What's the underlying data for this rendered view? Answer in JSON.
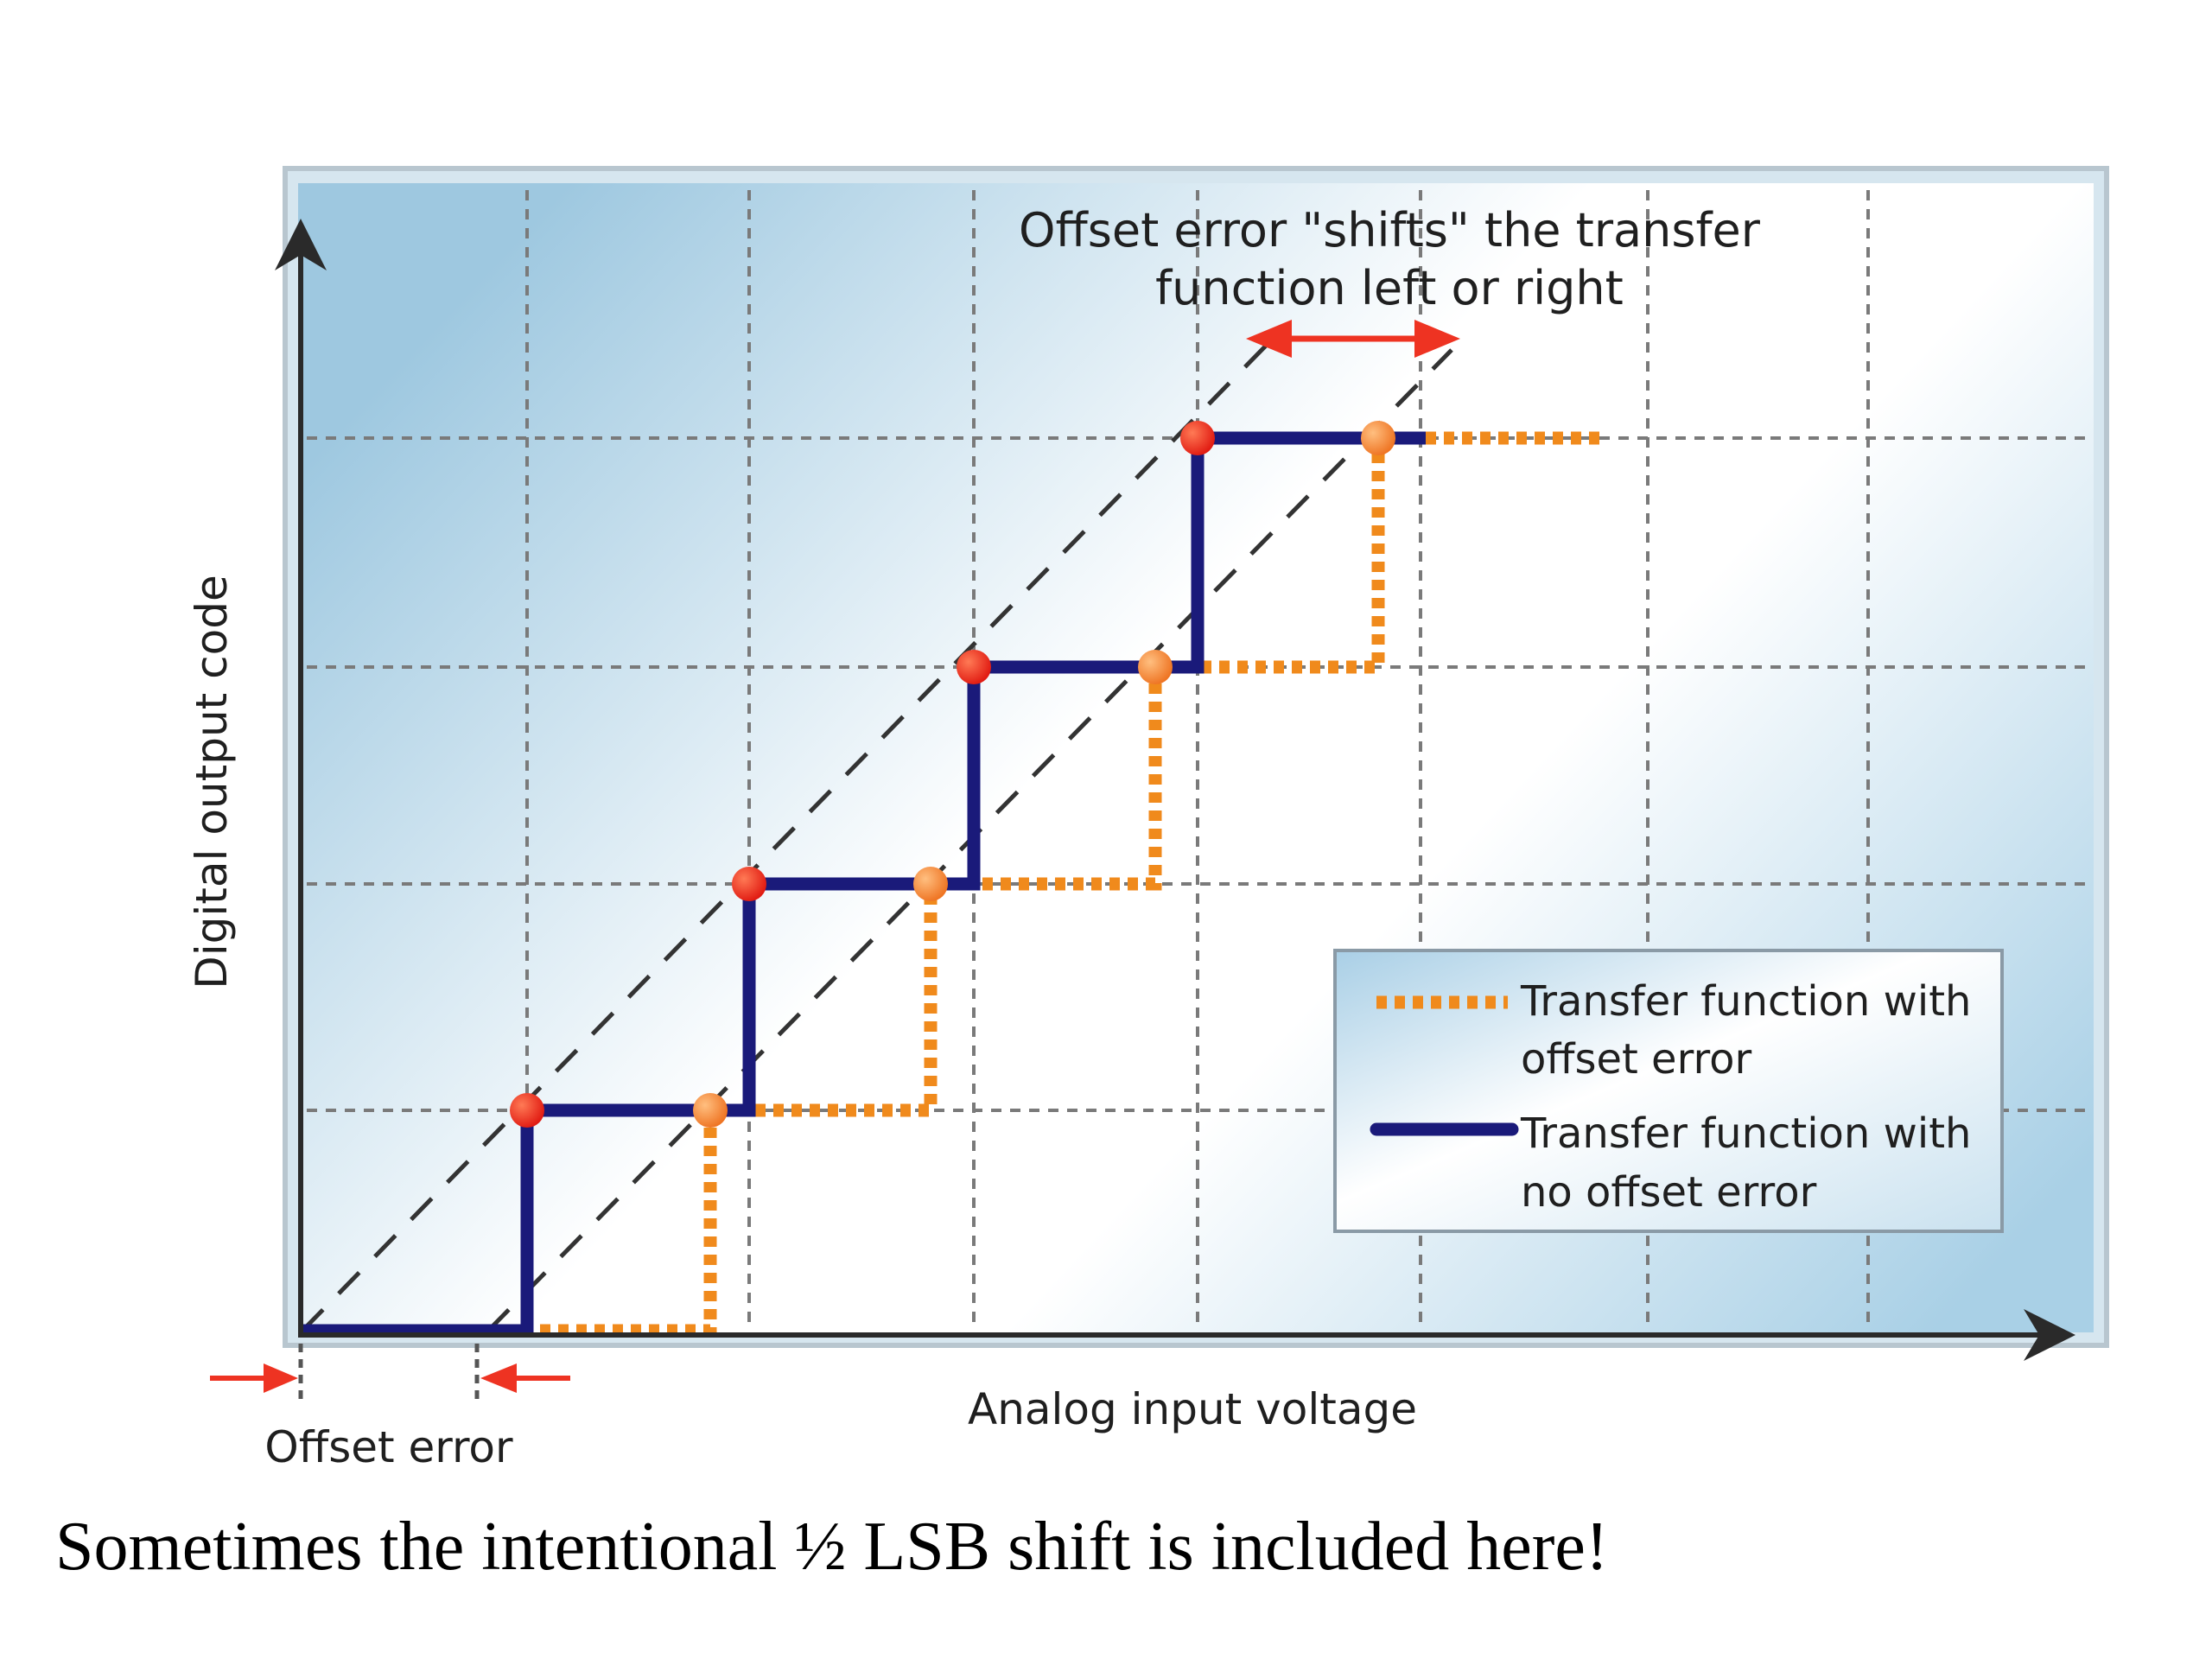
{
  "diagram": {
    "annotation_line1": "Offset error \"shifts\" the transfer",
    "annotation_line2": "function left or right",
    "x_axis_label": "Analog input voltage",
    "y_axis_label": "Digital output code",
    "offset_label": "Offset error",
    "legend": {
      "offset_line1": "Transfer function with",
      "offset_line2": "offset error",
      "ideal_line1": "Transfer function with",
      "ideal_line2": "no offset error"
    },
    "colors": {
      "ideal_curve": "#1a1a7a",
      "offset_curve": "#f08a1c",
      "transition_dot_ideal": "#e8201a",
      "transition_dot_offset": "#f07828",
      "arrow": "#ee3322",
      "background_light": "#ffffff",
      "background_blue": "#b9d8ea"
    }
  },
  "caption": "Sometimes the intentional ½ LSB shift is included here!"
}
